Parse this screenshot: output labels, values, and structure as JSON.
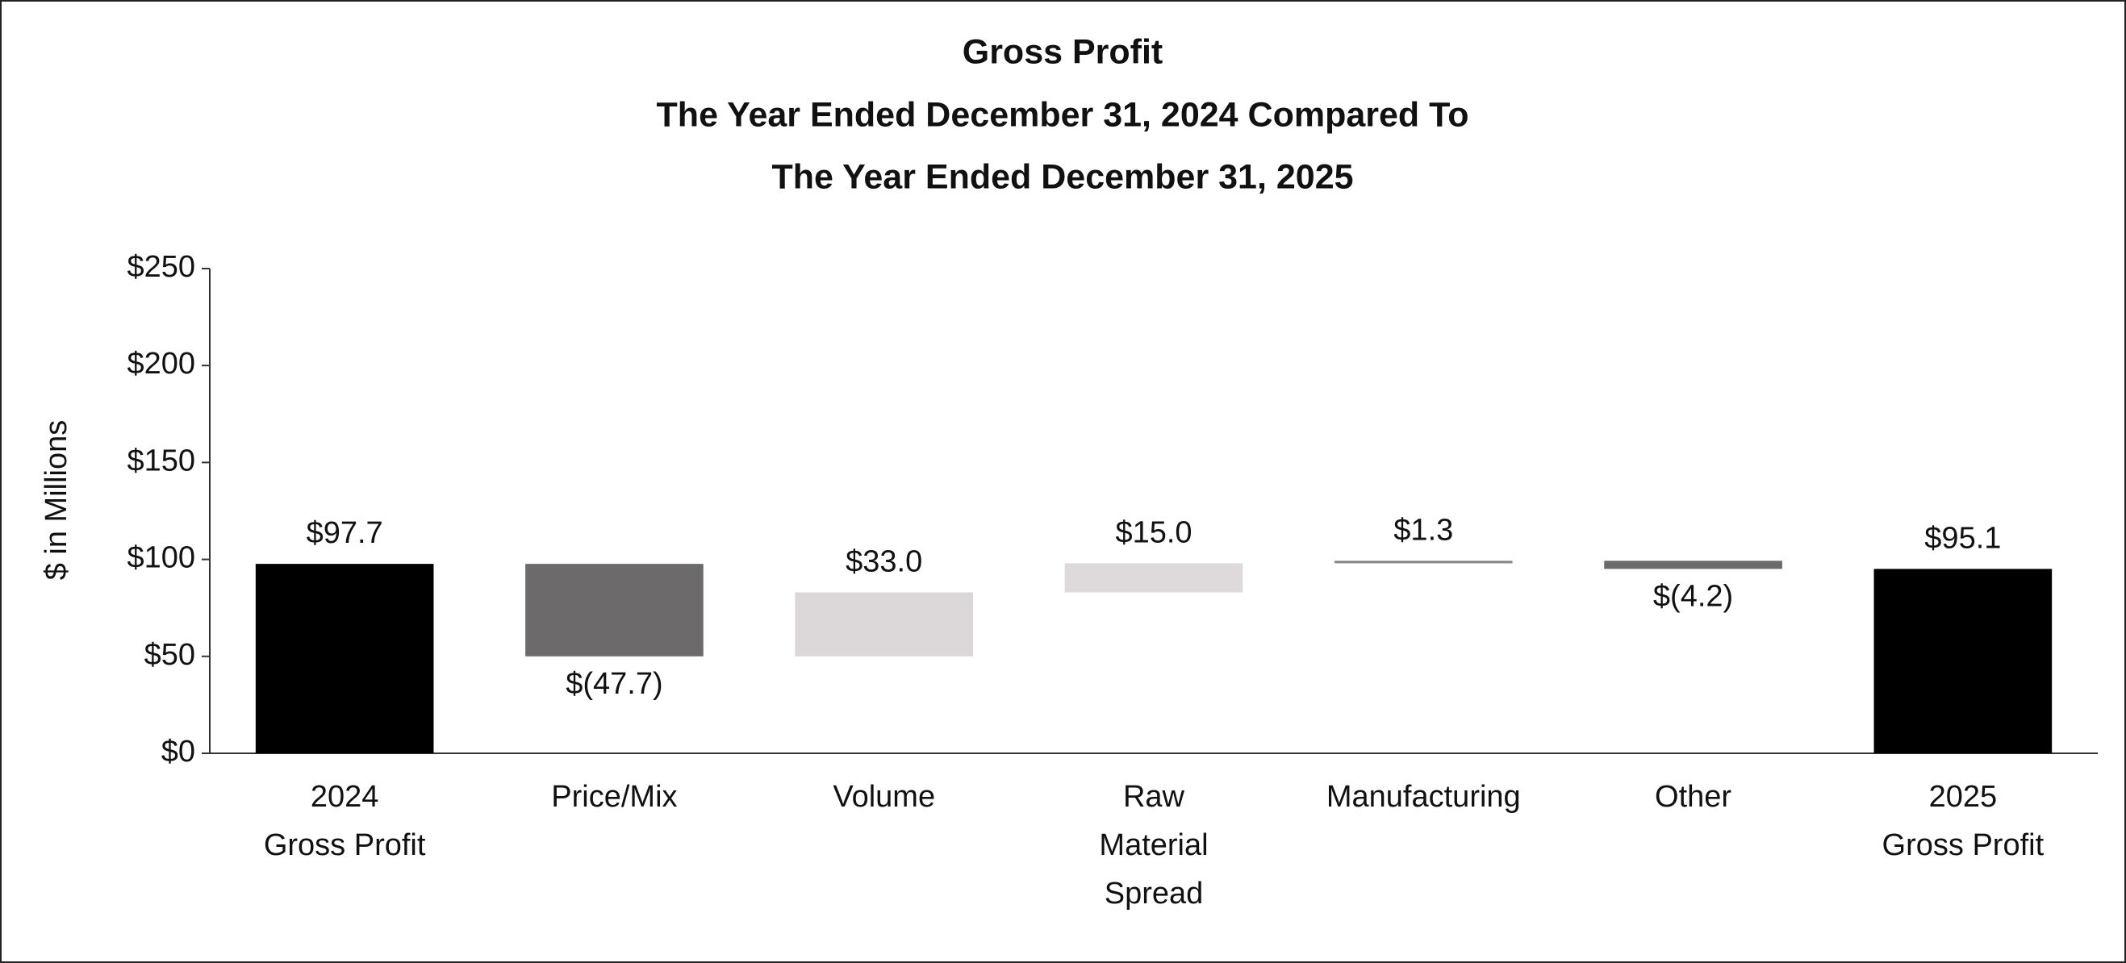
{
  "chart_data": {
    "type": "waterfall",
    "title": [
      "Gross Profit",
      "The Year Ended December 31, 2024 Compared To",
      "The Year Ended December 31, 2025"
    ],
    "y_label": "$ in Millions",
    "categories": [
      [
        "2024",
        "Gross Profit"
      ],
      [
        "Price/Mix"
      ],
      [
        "Volume"
      ],
      [
        "Raw",
        "Material",
        "Spread"
      ],
      [
        "Manufacturing"
      ],
      [
        "Other"
      ],
      [
        "2025",
        "Gross Profit"
      ]
    ],
    "measure": [
      "absolute",
      "relative",
      "relative",
      "relative",
      "relative",
      "relative",
      "absolute"
    ],
    "values": [
      97.7,
      -47.7,
      33.0,
      15.0,
      1.3,
      -4.2,
      95.1
    ],
    "value_labels": [
      "$97.7",
      "$(47.7)",
      "$33.0",
      "$15.0",
      "$1.3",
      "$(4.2)",
      "$95.1"
    ],
    "colors": [
      "#000000",
      "#6d6a6b",
      "#dcd8d9",
      "#dedadb",
      "#8a8788",
      "#6d6a6b",
      "#000000"
    ],
    "ylim": [
      0,
      250
    ],
    "yticks": [
      {
        "value": 0,
        "label": "$0"
      },
      {
        "value": 50,
        "label": "$50"
      },
      {
        "value": 100,
        "label": "$100"
      },
      {
        "value": 150,
        "label": "$150"
      },
      {
        "value": 200,
        "label": "$200"
      },
      {
        "value": 250,
        "label": "$250"
      }
    ],
    "grid": false
  }
}
